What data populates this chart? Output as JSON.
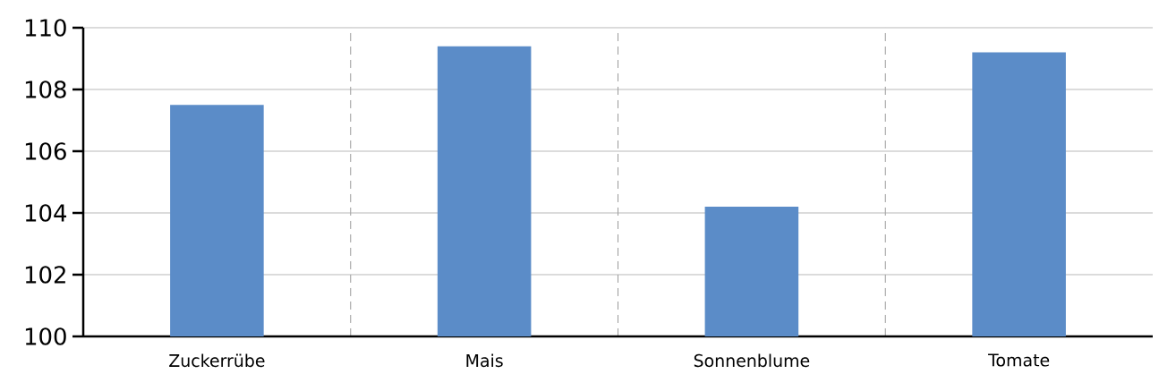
{
  "chart_data": {
    "type": "bar",
    "categories": [
      "Zuckerrübe",
      "Mais",
      "Sonnenblume",
      "Tomate"
    ],
    "values": [
      107.5,
      109.4,
      104.2,
      109.2
    ],
    "color": "#5b8cc8",
    "ylim": [
      100,
      110
    ],
    "yticks": [
      100,
      102,
      104,
      106,
      108,
      110
    ],
    "grid": true
  }
}
